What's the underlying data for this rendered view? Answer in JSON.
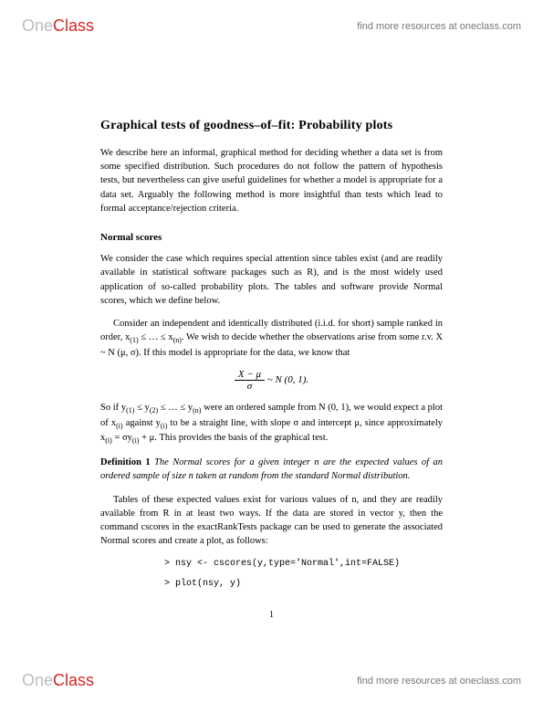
{
  "header": {
    "logo_one": "One",
    "logo_class": "Class",
    "link_text": "find more resources at oneclass.com"
  },
  "doc": {
    "title": "Graphical tests of goodness–of–fit: Probability plots",
    "intro": "We describe here an informal, graphical method for deciding whether a data set is from some specified distribution. Such procedures do not follow the pattern of hypothesis tests, but nevertheless can give useful guidelines for whether a model is appropriate for a data set. Arguably the following method is more insightful than tests which lead to formal acceptance/rejection criteria.",
    "section1": "Normal scores",
    "p1": "We consider the case which requires special attention since tables exist (and are readily available in statistical software packages such as R), and is the most widely used application of so-called probability plots. The tables and software provide Normal scores, which we define below.",
    "p2a": "Consider an independent and identically distributed (i.i.d. for short) sample ranked in order, x",
    "p2b": " ≤ … ≤ x",
    "p2c": ". We wish to decide whether the observations arise from some r.v. X ~ N (μ, σ). If this model is appropriate for the data, we know that",
    "formula_right": " ~ N (0, 1).",
    "p3a": "So if y",
    "p3b": " ≤ y",
    "p3c": " ≤ … ≤ y",
    "p3d": " were an ordered sample from N (0, 1), we would expect a plot of x",
    "p3e": " against y",
    "p3f": " to be a straight line, with slope σ and intercept μ, since approximately x",
    "p3g": " = σy",
    "p3h": " + μ. This provides the basis of the graphical test.",
    "def_label": "Definition 1",
    "def_text": " The Normal scores for a given integer n are the expected values of an ordered sample of size n taken at random from the standard Normal distribution.",
    "p4": "Tables of these expected values exist for various values of n, and they are readily available from R in at least two ways. If the data are stored in vector y, then the command cscores in the exactRankTests package can be used to generate the associated Normal scores and create a plot, as follows:",
    "code1": ">   nsy <- cscores(y,type='Normal',int=FALSE)",
    "code2": ">   plot(nsy, y)",
    "pagenum": "1"
  },
  "sub": {
    "one": "(1)",
    "two": "(2)",
    "n": "(n)",
    "i": "(i)"
  },
  "frac": {
    "num": "X − μ",
    "den": "σ"
  }
}
